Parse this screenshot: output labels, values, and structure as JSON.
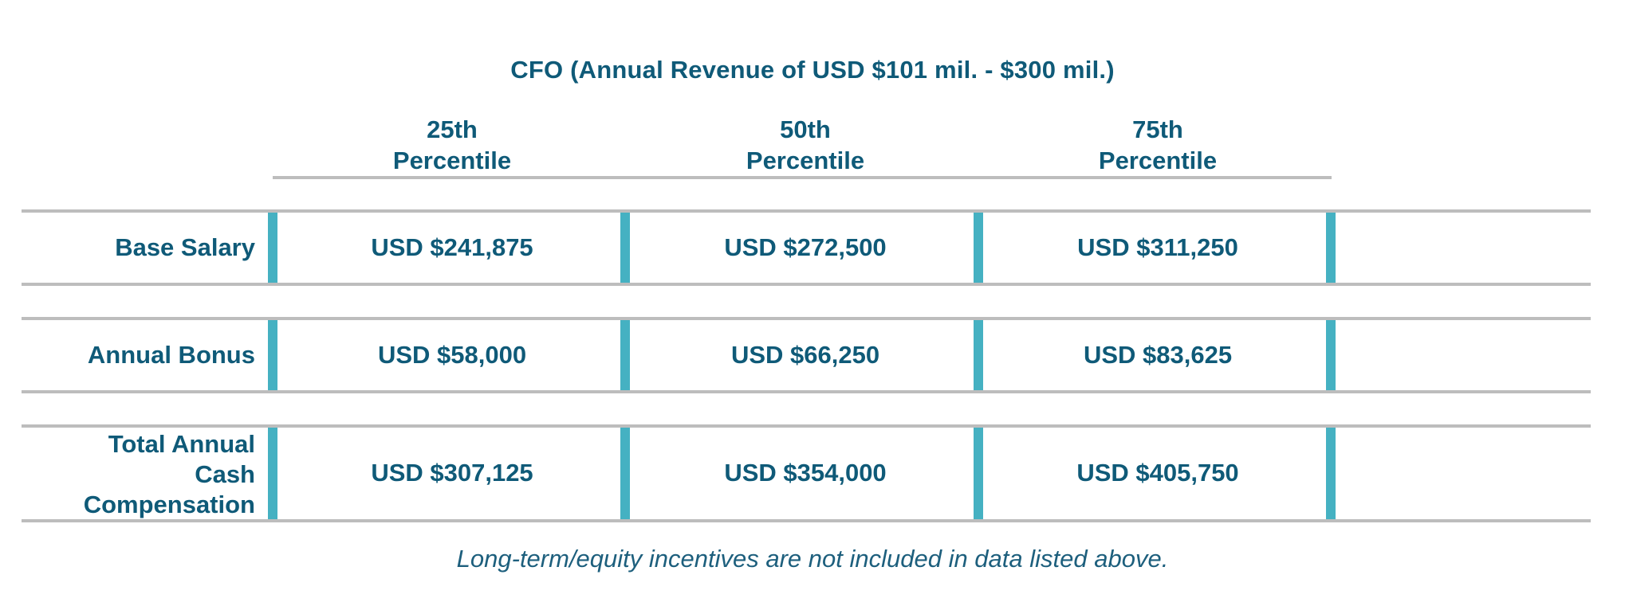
{
  "table": {
    "title": "CFO (Annual Revenue of USD $101 mil. - $300 mil.)",
    "columns": [
      {
        "line1": "25th",
        "line2": "Percentile"
      },
      {
        "line1": "50th",
        "line2": "Percentile"
      },
      {
        "line1": "75th",
        "line2": "Percentile"
      }
    ],
    "rows": [
      {
        "label_lines": [
          "Base Salary"
        ],
        "values": [
          "USD $241,875",
          "USD $272,500",
          "USD $311,250"
        ]
      },
      {
        "label_lines": [
          "Annual Bonus"
        ],
        "values": [
          "USD $58,000",
          "USD $66,250",
          "USD $83,625"
        ]
      },
      {
        "label_lines": [
          "Total Annual",
          "Cash",
          "Compensation"
        ],
        "values": [
          "USD $307,125",
          "USD $354,000",
          "USD $405,750"
        ]
      }
    ],
    "footnote": "Long-term/equity incentives are not included in data listed above."
  },
  "colors": {
    "text": "#0f5a78",
    "accent_bar": "#45b1c2",
    "rule": "#bdbdbd"
  }
}
